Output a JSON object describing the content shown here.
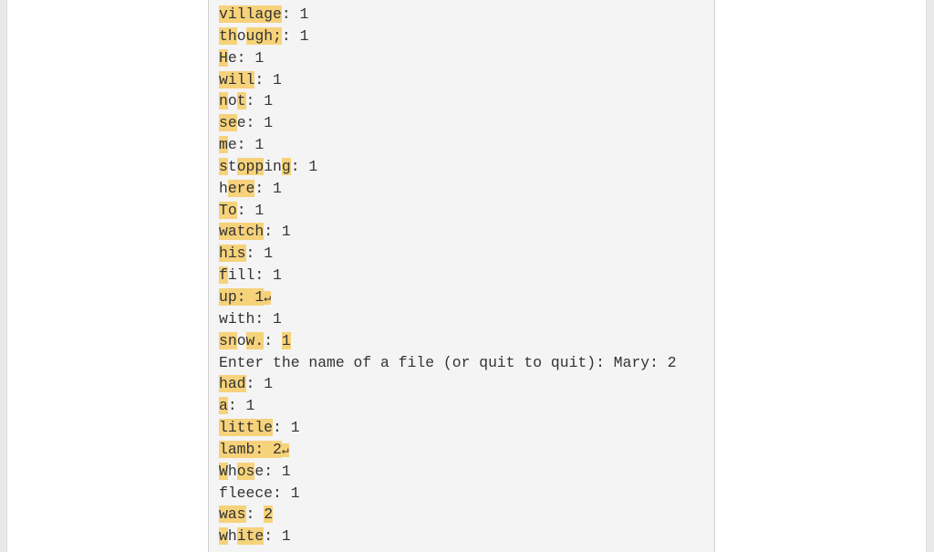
{
  "highlight_color": "#f6d27a",
  "panel_background": "#f4f4f4",
  "return_symbol": "↵",
  "lines": [
    {
      "parts": [
        {
          "t": "village",
          "h": true
        },
        {
          "t": ": 1",
          "h": false
        }
      ]
    },
    {
      "parts": [
        {
          "t": "th",
          "h": true
        },
        {
          "t": "o",
          "h": false
        },
        {
          "t": "ugh;",
          "h": true
        },
        {
          "t": ": 1",
          "h": false
        }
      ]
    },
    {
      "parts": [
        {
          "t": "H",
          "h": true
        },
        {
          "t": "e: 1",
          "h": false
        }
      ]
    },
    {
      "parts": [
        {
          "t": "will",
          "h": true
        },
        {
          "t": ": 1",
          "h": false
        }
      ]
    },
    {
      "parts": [
        {
          "t": "n",
          "h": true
        },
        {
          "t": "o",
          "h": false
        },
        {
          "t": "t",
          "h": true
        },
        {
          "t": ": 1",
          "h": false
        }
      ]
    },
    {
      "parts": [
        {
          "t": "se",
          "h": true
        },
        {
          "t": "e: 1",
          "h": false
        }
      ]
    },
    {
      "parts": [
        {
          "t": "m",
          "h": true
        },
        {
          "t": "e: 1",
          "h": false
        }
      ]
    },
    {
      "parts": [
        {
          "t": "s",
          "h": true
        },
        {
          "t": "t",
          "h": false
        },
        {
          "t": "opp",
          "h": true
        },
        {
          "t": "in",
          "h": false
        },
        {
          "t": "g",
          "h": true
        },
        {
          "t": ": 1",
          "h": false
        }
      ]
    },
    {
      "parts": [
        {
          "t": "h",
          "h": false
        },
        {
          "t": "ere",
          "h": true
        },
        {
          "t": ": 1",
          "h": false
        }
      ]
    },
    {
      "parts": [
        {
          "t": "To",
          "h": true
        },
        {
          "t": ": 1",
          "h": false
        }
      ]
    },
    {
      "parts": [
        {
          "t": "watch",
          "h": true
        },
        {
          "t": ": 1",
          "h": false
        }
      ]
    },
    {
      "parts": [
        {
          "t": "his",
          "h": true
        },
        {
          "t": ": 1",
          "h": false
        }
      ]
    },
    {
      "parts": [
        {
          "t": "f",
          "h": true
        },
        {
          "t": "ill: 1",
          "h": false
        }
      ]
    },
    {
      "parts": [
        {
          "t": "up: 1",
          "h": true,
          "ret": true
        }
      ]
    },
    {
      "parts": [
        {
          "t": "with: 1",
          "h": false
        }
      ]
    },
    {
      "parts": [
        {
          "t": "sn",
          "h": true
        },
        {
          "t": "o",
          "h": false
        },
        {
          "t": "w.",
          "h": true
        },
        {
          "t": ": ",
          "h": false
        },
        {
          "t": "1",
          "h": true
        }
      ]
    },
    {
      "parts": [
        {
          "t": "Enter the name of a file (or quit to quit): Mary: 2",
          "h": false
        }
      ]
    },
    {
      "parts": [
        {
          "t": "had",
          "h": true
        },
        {
          "t": ": 1",
          "h": false
        }
      ]
    },
    {
      "parts": [
        {
          "t": "a",
          "h": true
        },
        {
          "t": ": 1",
          "h": false
        }
      ]
    },
    {
      "parts": [
        {
          "t": "little",
          "h": true
        },
        {
          "t": ": 1",
          "h": false
        }
      ]
    },
    {
      "parts": [
        {
          "t": "lamb: 2",
          "h": true,
          "ret": true
        }
      ]
    },
    {
      "parts": [
        {
          "t": "W",
          "h": true
        },
        {
          "t": "h",
          "h": false
        },
        {
          "t": "os",
          "h": true
        },
        {
          "t": "e: 1",
          "h": false
        }
      ]
    },
    {
      "parts": [
        {
          "t": "fleece: 1",
          "h": false
        }
      ]
    },
    {
      "parts": [
        {
          "t": "was",
          "h": true
        },
        {
          "t": ": ",
          "h": false
        },
        {
          "t": "2",
          "h": true
        }
      ]
    },
    {
      "parts": [
        {
          "t": "w",
          "h": true
        },
        {
          "t": "h",
          "h": false
        },
        {
          "t": "ite",
          "h": true
        },
        {
          "t": ": 1",
          "h": false
        }
      ]
    }
  ]
}
